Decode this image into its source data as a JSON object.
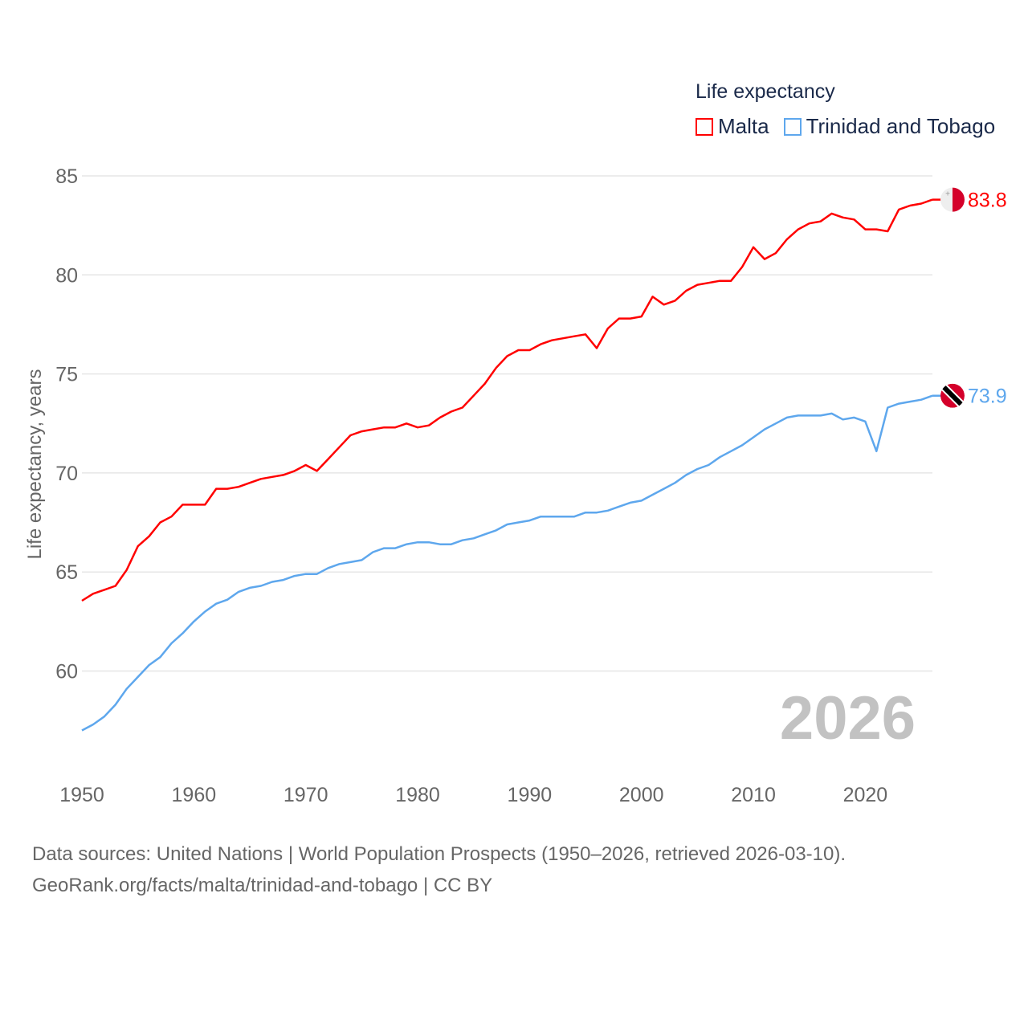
{
  "chart_data": {
    "type": "line",
    "title": "Life expectancy",
    "xlabel": "",
    "ylabel": "Life expectancy, years",
    "xlim": [
      1950,
      2026
    ],
    "ylim": [
      55,
      85
    ],
    "x_ticks": [
      "1950",
      "1960",
      "1970",
      "1980",
      "1990",
      "2000",
      "2010",
      "2020"
    ],
    "y_ticks": [
      "60",
      "65",
      "70",
      "75",
      "80",
      "85"
    ],
    "grid": true,
    "legend_placement": "top-right",
    "watermark_year": "2026",
    "x": [
      1950,
      1951,
      1952,
      1953,
      1954,
      1955,
      1956,
      1957,
      1958,
      1959,
      1960,
      1961,
      1962,
      1963,
      1964,
      1965,
      1966,
      1967,
      1968,
      1969,
      1970,
      1971,
      1972,
      1973,
      1974,
      1975,
      1976,
      1977,
      1978,
      1979,
      1980,
      1981,
      1982,
      1983,
      1984,
      1985,
      1986,
      1987,
      1988,
      1989,
      1990,
      1991,
      1992,
      1993,
      1994,
      1995,
      1996,
      1997,
      1998,
      1999,
      2000,
      2001,
      2002,
      2003,
      2004,
      2005,
      2006,
      2007,
      2008,
      2009,
      2010,
      2011,
      2012,
      2013,
      2014,
      2015,
      2016,
      2017,
      2018,
      2019,
      2020,
      2021,
      2022,
      2023,
      2024,
      2025,
      2026
    ],
    "series": [
      {
        "name": "Malta",
        "color": "#ff0000",
        "end_label": "83.8",
        "values": [
          63.55,
          63.9,
          64.1,
          64.3,
          65.1,
          66.3,
          66.8,
          67.5,
          67.8,
          68.4,
          68.4,
          68.4,
          69.2,
          69.2,
          69.3,
          69.5,
          69.7,
          69.8,
          69.9,
          70.1,
          70.4,
          70.1,
          70.7,
          71.3,
          71.9,
          72.1,
          72.2,
          72.3,
          72.3,
          72.5,
          72.3,
          72.4,
          72.8,
          73.1,
          73.3,
          73.9,
          74.5,
          75.3,
          75.9,
          76.2,
          76.2,
          76.5,
          76.7,
          76.8,
          76.9,
          77.0,
          76.3,
          77.3,
          77.8,
          77.8,
          77.9,
          78.9,
          78.5,
          78.7,
          79.2,
          79.5,
          79.6,
          79.7,
          79.7,
          80.4,
          81.4,
          80.8,
          81.1,
          81.8,
          82.3,
          82.6,
          82.7,
          83.1,
          82.9,
          82.8,
          82.3,
          82.3,
          82.2,
          83.3,
          83.5,
          83.6,
          83.8
        ]
      },
      {
        "name": "Trinidad and Tobago",
        "color": "#5ea7ed",
        "end_label": "73.9",
        "values": [
          57.0,
          57.3,
          57.7,
          58.3,
          59.1,
          59.7,
          60.3,
          60.7,
          61.4,
          61.9,
          62.5,
          63.0,
          63.4,
          63.6,
          64.0,
          64.2,
          64.3,
          64.5,
          64.6,
          64.8,
          64.9,
          64.9,
          65.2,
          65.4,
          65.5,
          65.6,
          66.0,
          66.2,
          66.2,
          66.4,
          66.5,
          66.5,
          66.4,
          66.4,
          66.6,
          66.7,
          66.9,
          67.1,
          67.4,
          67.5,
          67.6,
          67.8,
          67.8,
          67.8,
          67.8,
          68.0,
          68.0,
          68.1,
          68.3,
          68.5,
          68.6,
          68.9,
          69.2,
          69.5,
          69.9,
          70.2,
          70.4,
          70.8,
          71.1,
          71.4,
          71.8,
          72.2,
          72.5,
          72.8,
          72.9,
          72.9,
          72.9,
          73.0,
          72.7,
          72.8,
          72.6,
          71.1,
          73.3,
          73.5,
          73.6,
          73.7,
          73.9
        ]
      }
    ]
  },
  "source": {
    "line1": "Data sources: United Nations | World Population Prospects (1950–2026, retrieved 2026-03-10).",
    "line2": "GeoRank.org/facts/malta/trinidad-and-tobago | CC BY"
  }
}
